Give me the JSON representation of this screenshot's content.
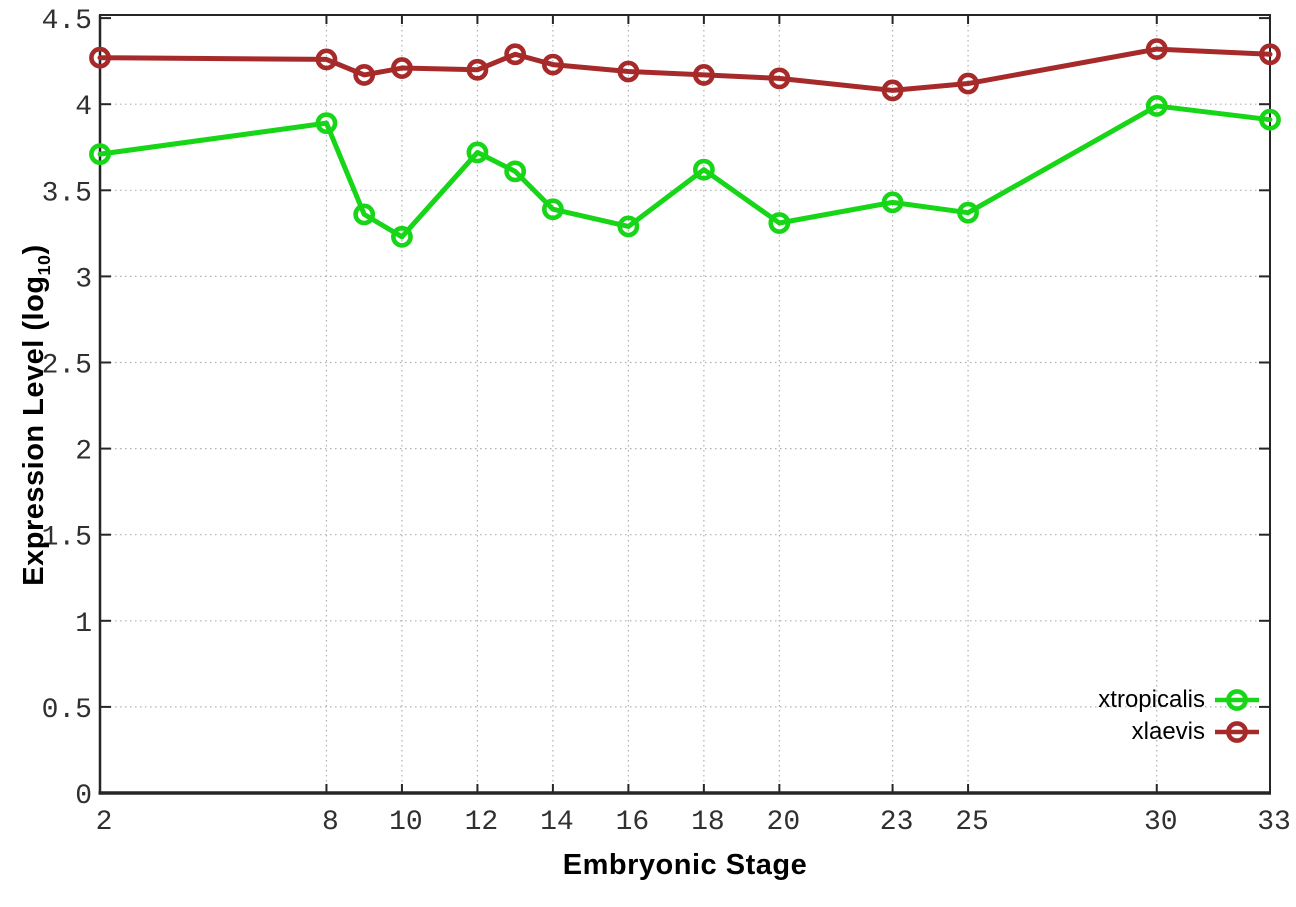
{
  "chart_data": {
    "type": "line",
    "x": [
      2,
      8,
      9,
      10,
      12,
      13,
      14,
      16,
      18,
      20,
      23,
      25,
      30,
      33
    ],
    "series": [
      {
        "name": "xtropicalis",
        "color": "#17d517",
        "values": [
          3.71,
          3.89,
          3.36,
          3.23,
          3.72,
          3.61,
          3.39,
          3.29,
          3.62,
          3.31,
          3.43,
          3.37,
          3.99,
          3.91
        ]
      },
      {
        "name": "xlaevis",
        "color": "#a62a2a",
        "values": [
          4.27,
          4.26,
          4.17,
          4.21,
          4.2,
          4.29,
          4.23,
          4.19,
          4.17,
          4.15,
          4.08,
          4.12,
          4.32,
          4.29
        ]
      }
    ],
    "xlabel": "Embryonic Stage",
    "ylabel_main": "Expression Level (log",
    "ylabel_sub": "10",
    "ylabel_close": ")",
    "xticks": [
      2,
      8,
      10,
      12,
      14,
      16,
      18,
      20,
      23,
      25,
      30,
      33
    ],
    "yticks": [
      0,
      0.5,
      1,
      1.5,
      2,
      2.5,
      3,
      3.5,
      4,
      4.5
    ],
    "xlim": [
      2,
      33
    ],
    "ylim": [
      0,
      4.5
    ],
    "grid": "on",
    "legend_position": "inside bottom-right",
    "marker": "open-circle"
  },
  "colors": {
    "grid": "#b0b0b0",
    "axis": "#262626",
    "tick_text": "#303030"
  }
}
